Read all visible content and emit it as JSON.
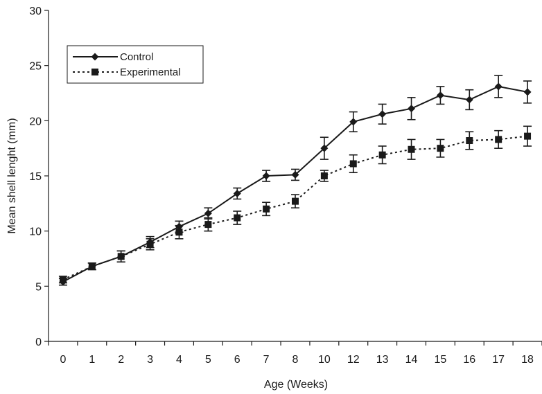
{
  "chart_data": {
    "type": "line",
    "title": "",
    "xlabel": "Age (Weeks)",
    "ylabel": "Mean shell lenght (mm)",
    "categories": [
      "0",
      "1",
      "2",
      "3",
      "4",
      "5",
      "6",
      "7",
      "8",
      "10",
      "12",
      "13",
      "14",
      "15",
      "16",
      "17",
      "18"
    ],
    "ylim": [
      0,
      30
    ],
    "yticks": [
      0,
      5,
      10,
      15,
      20,
      25,
      30
    ],
    "grid": false,
    "legend_position": "top-left",
    "series": [
      {
        "name": "Control",
        "marker": "diamond",
        "line_style": "solid",
        "color": "#1a1a1a",
        "values": [
          5.4,
          6.8,
          7.7,
          9.0,
          10.4,
          11.6,
          13.4,
          15.0,
          15.1,
          17.5,
          19.9,
          20.6,
          21.1,
          22.3,
          21.9,
          23.1,
          22.6
        ],
        "errors": [
          0.3,
          0.3,
          0.5,
          0.5,
          0.5,
          0.5,
          0.5,
          0.5,
          0.5,
          1.0,
          0.9,
          0.9,
          1.0,
          0.8,
          0.9,
          1.0,
          1.0
        ]
      },
      {
        "name": "Experimental",
        "marker": "square",
        "line_style": "dotted",
        "color": "#1a1a1a",
        "values": [
          5.6,
          6.8,
          7.7,
          8.8,
          9.9,
          10.6,
          11.2,
          12.0,
          12.7,
          15.0,
          16.1,
          16.9,
          17.4,
          17.5,
          18.2,
          18.3,
          18.6
        ],
        "errors": [
          0.3,
          0.3,
          0.5,
          0.5,
          0.6,
          0.6,
          0.6,
          0.6,
          0.6,
          0.5,
          0.8,
          0.8,
          0.9,
          0.8,
          0.8,
          0.8,
          0.9
        ]
      }
    ]
  }
}
